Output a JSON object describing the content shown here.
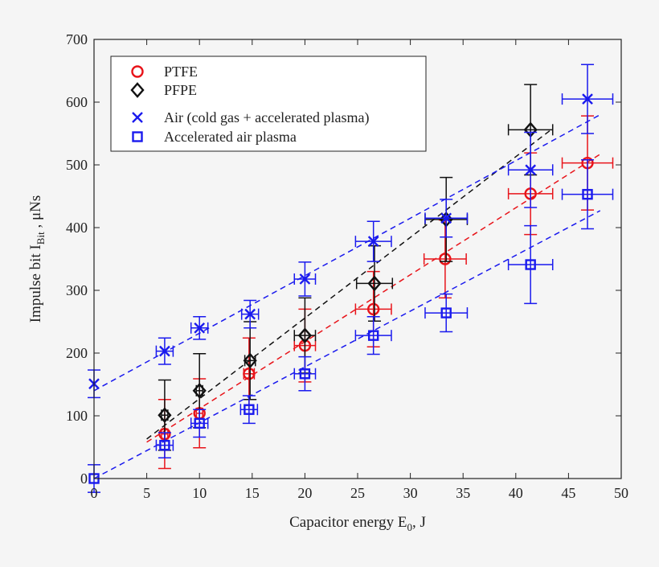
{
  "chart_data": {
    "type": "scatter",
    "title": "",
    "xlabel": "Capacitor energy E",
    "xlabel_sub": "0",
    "xlabel_suffix": ", J",
    "ylabel": "Impulse bit I",
    "ylabel_sub": "Bit",
    "ylabel_suffix": " , μNs",
    "xlim": [
      0,
      50
    ],
    "ylim": [
      0,
      700
    ],
    "xticks": [
      0,
      5,
      10,
      15,
      20,
      25,
      30,
      35,
      40,
      45,
      50
    ],
    "yticks": [
      0,
      100,
      200,
      300,
      400,
      500,
      600,
      700
    ],
    "grid": false,
    "legend_placement": "top-left",
    "series": [
      {
        "name": "PTFE",
        "marker": "circle",
        "color": "#e8141a",
        "x": [
          6.7,
          10,
          14.7,
          20,
          26.5,
          33.3,
          41.4,
          46.8
        ],
        "y": [
          71,
          104,
          167,
          212,
          270,
          350,
          454,
          503
        ],
        "yerr": [
          55,
          55,
          57,
          58,
          60,
          62,
          65,
          75
        ],
        "xerr": [
          0.3,
          0.3,
          0.5,
          1.0,
          1.7,
          2.0,
          2.1,
          2.4
        ],
        "fit": [
          [
            5,
            58
          ],
          [
            48,
            517
          ]
        ]
      },
      {
        "name": "PFPE",
        "marker": "diamond",
        "color": "#111111",
        "x": [
          6.7,
          10,
          14.8,
          20,
          26.6,
          33.4,
          41.4
        ],
        "y": [
          101,
          140,
          188,
          228,
          311,
          413,
          556
        ],
        "yerr": [
          56,
          59,
          62,
          60,
          60,
          67,
          72
        ],
        "xerr": [
          0.3,
          0.3,
          0.5,
          1.0,
          1.7,
          2.0,
          2.1
        ],
        "fit": [
          [
            5,
            63
          ],
          [
            43.5,
            558
          ]
        ]
      },
      {
        "name": "Air (cold gas + accelerated plasma)",
        "marker": "x",
        "color": "#1a1aee",
        "x": [
          0,
          6.7,
          10,
          14.8,
          20,
          26.5,
          33.4,
          41.4,
          46.8
        ],
        "y": [
          151,
          203,
          240,
          262,
          318,
          378,
          415,
          492,
          605
        ],
        "yerr": [
          22,
          21,
          18,
          22,
          27,
          32,
          30,
          60,
          55
        ],
        "xerr": [
          0,
          0.8,
          0.8,
          0.8,
          1.0,
          1.7,
          2.0,
          2.1,
          2.4
        ],
        "fit": [
          [
            0,
            140
          ],
          [
            48,
            580
          ]
        ]
      },
      {
        "name": "Accelerated air plasma",
        "marker": "square",
        "color": "#1a1aee",
        "x": [
          0,
          6.7,
          10,
          14.7,
          20,
          26.5,
          33.4,
          41.4,
          46.8
        ],
        "y": [
          0,
          53,
          88,
          110,
          167,
          228,
          264,
          341,
          453
        ],
        "yerr": [
          22,
          20,
          22,
          22,
          27,
          30,
          30,
          62,
          55
        ],
        "xerr": [
          0,
          0.8,
          0.8,
          0.8,
          1.0,
          1.7,
          2.0,
          2.1,
          2.4
        ],
        "fit": [
          [
            0,
            0
          ],
          [
            48,
            427
          ]
        ]
      }
    ]
  }
}
